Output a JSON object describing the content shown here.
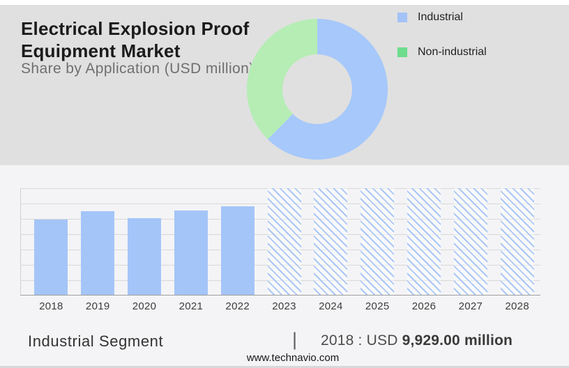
{
  "header": {
    "title_line1": "Electrical Explosion Proof",
    "title_line2": "Equipment Market",
    "subtitle": "Share by Application (USD million)"
  },
  "legend": {
    "items": [
      {
        "label": "Industrial",
        "swatch_color": "#a3c3f7"
      },
      {
        "label": "Non-industrial",
        "swatch_color": "#6edc8c"
      }
    ]
  },
  "colors": {
    "header_background": "#e0e0e0",
    "page_background": "#f4f4f6",
    "bar_blue": "#a4c5f8",
    "hatch_line_blue": "#a9c7f5",
    "donut_blue": "#a6c8fa",
    "donut_green": "#b5edb5"
  },
  "chart_data": [
    {
      "type": "pie",
      "subtype": "donut",
      "title": "Share by Application (USD million)",
      "labels": [
        "Industrial",
        "Non-industrial"
      ],
      "values_pct": [
        62.4,
        37.6
      ],
      "colors": [
        "#a6c8fa",
        "#b5edb5"
      ],
      "start_angle_deg": 0,
      "legend_position": "right",
      "note": "segment shares estimated from arc angles; no numeric labels shown in image"
    },
    {
      "type": "bar",
      "categories": [
        "2018",
        "2019",
        "2020",
        "2021",
        "2022",
        "2023",
        "2024",
        "2025",
        "2026",
        "2027",
        "2028"
      ],
      "series": [
        {
          "name": "Industrial",
          "values_usd_million_est": [
            9929.0,
            11020,
            10110,
            11110,
            11660,
            null,
            null,
            null,
            null,
            null,
            null
          ],
          "bar_heights_norm": [
            0.708,
            0.786,
            0.721,
            0.792,
            0.831,
            1,
            1,
            1,
            1,
            1,
            1
          ]
        }
      ],
      "solid_years": [
        "2018",
        "2019",
        "2020",
        "2021",
        "2022"
      ],
      "hatched_forecast_years": [
        "2023",
        "2024",
        "2025",
        "2026",
        "2027",
        "2028"
      ],
      "known_point_label": "2018 : USD 9,929.00 million",
      "xlabel": "",
      "ylabel": "",
      "y_tick_labels_shown": false,
      "gridline_rows": 7,
      "grid_on": true,
      "legend_position": "none"
    }
  ],
  "caption": {
    "segment_label": "Industrial Segment",
    "divider": "|",
    "value_prefix": "2018 : USD ",
    "value_bold": "9,929.00 million"
  },
  "footer": {
    "url": "www.technavio.com"
  }
}
